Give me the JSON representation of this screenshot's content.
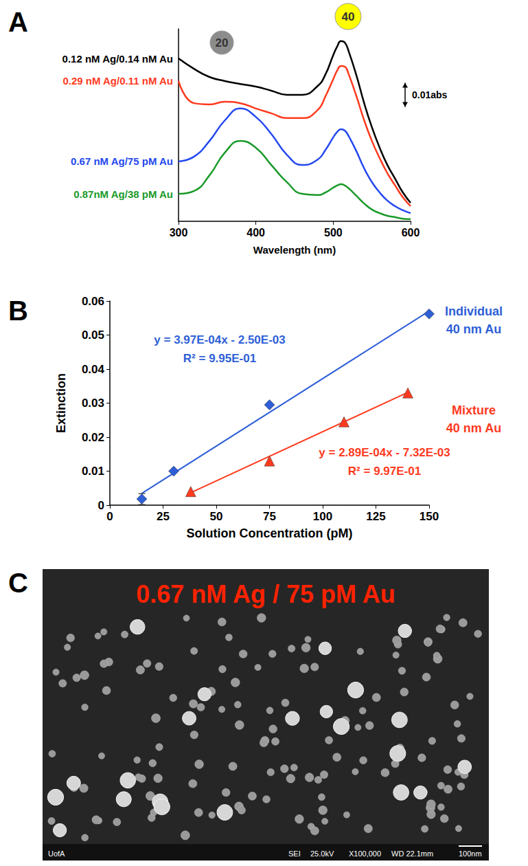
{
  "chart_data": [
    {
      "panel": "A",
      "type": "line",
      "xlabel": "Wavelength (nm)",
      "x": [
        300,
        320,
        340,
        360,
        380,
        400,
        420,
        440,
        460,
        480,
        490,
        500,
        505,
        510,
        515,
        520,
        530,
        540,
        550,
        560,
        570,
        580,
        590,
        600
      ],
      "xlim": [
        300,
        600
      ],
      "xticks": [
        300,
        400,
        500,
        600
      ],
      "ylim": [
        0,
        0.08
      ],
      "tick_labels": "x",
      "grid": false,
      "series": [
        {
          "name": "0.12 nM Ag/0.14 nM Au",
          "color": "#000000",
          "values": [
            0.0677,
            0.0634,
            0.06,
            0.0583,
            0.0571,
            0.056,
            0.0543,
            0.0526,
            0.0526,
            0.0563,
            0.0611,
            0.0691,
            0.0726,
            0.0749,
            0.0743,
            0.0706,
            0.0606,
            0.0491,
            0.0391,
            0.0306,
            0.0234,
            0.0177,
            0.012,
            0.0077
          ]
        },
        {
          "name": "0.29 nM Ag/0.11 nM Au",
          "color": "#ff3a1e",
          "values": [
            0.0583,
            0.0491,
            0.0486,
            0.0497,
            0.0491,
            0.0469,
            0.0449,
            0.0429,
            0.0429,
            0.0463,
            0.052,
            0.0591,
            0.0626,
            0.0646,
            0.0643,
            0.0611,
            0.052,
            0.042,
            0.0334,
            0.0263,
            0.02,
            0.0149,
            0.01,
            0.0063
          ]
        },
        {
          "name": "0.67 nM Ag/75 pM Au",
          "color": "#2449f0",
          "values": [
            0.0249,
            0.0269,
            0.0334,
            0.042,
            0.0469,
            0.0434,
            0.0363,
            0.0277,
            0.0234,
            0.0257,
            0.0297,
            0.0349,
            0.0371,
            0.0383,
            0.0377,
            0.0354,
            0.0291,
            0.022,
            0.0163,
            0.012,
            0.0086,
            0.0063,
            0.0046,
            0.0034
          ]
        },
        {
          "name": "0.87nM Ag/38 pM Au",
          "color": "#1a9a2a",
          "values": [
            0.0114,
            0.0126,
            0.0191,
            0.0286,
            0.0334,
            0.0306,
            0.0234,
            0.0163,
            0.0114,
            0.0109,
            0.012,
            0.014,
            0.0149,
            0.0154,
            0.0149,
            0.0137,
            0.0106,
            0.0074,
            0.0049,
            0.0034,
            0.0023,
            0.0017,
            0.0011,
            0.0009
          ]
        }
      ],
      "annotations": [
        {
          "text": "20",
          "color": "#8c8c8c"
        },
        {
          "text": "40",
          "color": "#ffff00"
        }
      ],
      "scale_bar": {
        "value": 0.01,
        "label": "0.01abs"
      }
    },
    {
      "panel": "B",
      "type": "scatter",
      "xlabel": "Solution Concentration (pM)",
      "ylabel": "Extinction",
      "xlim": [
        0,
        150
      ],
      "xticks": [
        0,
        25,
        50,
        75,
        100,
        125,
        150
      ],
      "ylim": [
        0,
        0.06
      ],
      "yticks": [
        0,
        0.01,
        0.02,
        0.03,
        0.04,
        0.05,
        0.06
      ],
      "grid": false,
      "series": [
        {
          "name": "Individual 40 nm Au",
          "color": "#2e5fd6",
          "marker": "diamond",
          "x": [
            15,
            30,
            75,
            150
          ],
          "values": [
            0.0018,
            0.01,
            0.0295,
            0.0562
          ],
          "errors": [
            0.0016,
            null,
            null,
            null
          ],
          "fit": {
            "equation": "y = 3.97E-04x - 2.50E-03",
            "r2": "R² = 9.95E-01",
            "slope": 0.000397,
            "intercept": -0.0025,
            "x_range": [
              15,
              150
            ]
          }
        },
        {
          "name": "Mixture 40 nm Au",
          "color": "#ff3a1e",
          "marker": "triangle",
          "x": [
            38,
            75,
            110,
            140
          ],
          "values": [
            0.004,
            0.013,
            0.0245,
            0.033
          ],
          "errors": [
            null,
            null,
            null,
            null
          ],
          "fit": {
            "equation": "y = 2.89E-04x - 7.32E-03",
            "r2": "R² = 9.97E-01",
            "slope": 0.000289,
            "intercept": -0.00732,
            "x_range": [
              38,
              140
            ]
          }
        }
      ]
    }
  ],
  "image_panel": {
    "panel": "C",
    "type": "image",
    "title": "0.67 nM Ag / 75 pM Au",
    "footer": [
      "UofA",
      "SEI",
      "25.0kV",
      "X100,000",
      "WD 22.1mm",
      "100nm"
    ]
  }
}
